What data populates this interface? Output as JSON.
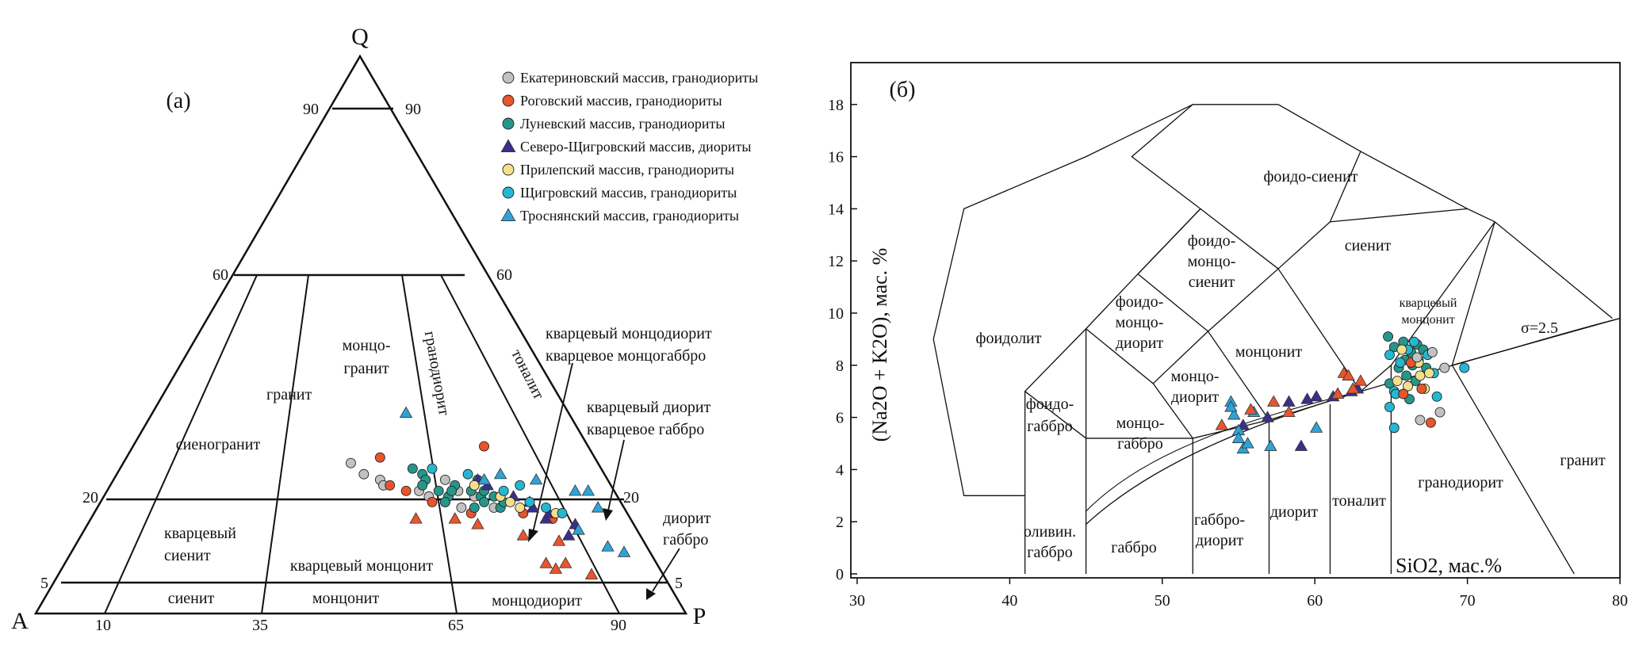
{
  "colors": {
    "ekaterinovsky": "#c2c2c2",
    "rogovsky": "#e8552c",
    "lunevsky": "#27968a",
    "severo_shchigrovsky": "#3a2f8a",
    "prilepsky": "#f4e08c",
    "shchigrovsky": "#25b7d2",
    "trosnyansky": "#2fa3d6",
    "triangles_orange": "#e8552c"
  },
  "panel_a": {
    "label": "(а)",
    "apex_q": "Q",
    "apex_a": "A",
    "apex_p": "P",
    "tick_labels": {
      "left_90": "90",
      "right_90": "90",
      "left_60": "60",
      "right_60": "60",
      "left_20": "20",
      "right_20": "20",
      "left_5": "5",
      "right_5": "5",
      "base_10": "10",
      "base_35": "35",
      "base_65": "65",
      "base_90": "90"
    },
    "fields": {
      "granite": "гранит",
      "monzogranite_1": "монцо-",
      "monzogranite_2": "гранит",
      "granodiorite": "гранодиорит",
      "tonalite": "тоналит",
      "syenogranite": "сиеногранит",
      "quartz_syenite_1": "кварцевый",
      "quartz_syenite_2": "сиенит",
      "quartz_monzonite": "кварцевый монцонит",
      "syenite": "сиенит",
      "monzonite": "монцонит",
      "monzodiorite": "монцодиорит",
      "qmd_1": "кварцевый монцодиорит",
      "qmd_2": "кварцевое монцогаббро",
      "qd_1": "кварцевый диорит",
      "qd_2": "кварцевое габбро",
      "dg_1": "диорит",
      "dg_2": "габбро"
    },
    "legend": [
      {
        "key": "ekaterinovsky",
        "marker": "circle",
        "label": "Екатериновский массив, гранодиориты"
      },
      {
        "key": "rogovsky",
        "marker": "circle",
        "label": "Роговский массив, гранодиориты"
      },
      {
        "key": "lunevsky",
        "marker": "circle",
        "label": "Луневский массив, гранодиориты"
      },
      {
        "key": "severo_shchigrovsky",
        "marker": "triangle",
        "label": "Северо-Щигровский массив, диориты"
      },
      {
        "key": "prilepsky",
        "marker": "circle",
        "label": "Прилепский массив, гранодиориты"
      },
      {
        "key": "shchigrovsky",
        "marker": "circle",
        "label": "Щигровский массив, гранодиориты"
      },
      {
        "key": "trosnyansky",
        "marker": "triangle",
        "label": "Троснянский массив, гранодиориты"
      }
    ]
  },
  "panel_b": {
    "label": "(б)",
    "ylabel": "(Na2O + K2O), мас. %",
    "xlabel": "SiO2, мас.%",
    "sigma_label": "σ=2.5",
    "fields": {
      "foidolite": "фоидолит",
      "foid_gabbro_1": "фоидо-",
      "foid_gabbro_2": "габбро",
      "foid_monzodiorite_1": "фоидо-",
      "foid_monzodiorite_2": "монцо-",
      "foid_monzodiorite_3": "диорит",
      "foid_monzosyenite_1": "фоидо-",
      "foid_monzosyenite_2": "монцо-",
      "foid_monzosyenite_3": "сиенит",
      "foid_syenite": "фоидо-сиенит",
      "syenite": "сиенит",
      "quartz_monzonite_1": "кварцевый",
      "quartz_monzonite_2": "монцонит",
      "monzonite": "монцонит",
      "monzodiorite_1": "монцо-",
      "monzodiorite_2": "диорит",
      "monzogabbro_1": "монцо-",
      "monzogabbro_2": "габбро",
      "olivine_gabbro_1": "оливин.",
      "olivine_gabbro_2": "габбро",
      "gabbro": "габбро",
      "gabbrodiorite_1": "габбро-",
      "gabbrodiorite_2": "диорит",
      "diorite": "диорит",
      "tonalite": "тоналит",
      "granodiorite": "гранодиорит",
      "granite": "гранит"
    }
  },
  "chart_data": [
    {
      "type": "scatter",
      "subtype": "ternary QAP",
      "title": "(а)",
      "axes": [
        "Q",
        "A",
        "P"
      ],
      "series": [
        {
          "name": "Екатериновский массив, гранодиориты",
          "marker": "circle",
          "points": [
            [
              27,
              38,
              35
            ],
            [
              25,
              37,
              38
            ],
            [
              24,
              35,
              41
            ],
            [
              23,
              35,
              42
            ],
            [
              22,
              30,
              48
            ],
            [
              21,
              29,
              50
            ],
            [
              20,
              27,
              53
            ],
            [
              19,
              25,
              56
            ],
            [
              22,
              24,
              54
            ],
            [
              24,
              25,
              51
            ],
            [
              21,
              22,
              57
            ],
            [
              19,
              20,
              61
            ]
          ]
        },
        {
          "name": "Роговский массив, гранодиориты",
          "marker": "circle",
          "points": [
            [
              28,
              33,
              39
            ],
            [
              23,
              34,
              43
            ],
            [
              22,
              32,
              46
            ],
            [
              20,
              29,
              51
            ],
            [
              18,
              24,
              58
            ],
            [
              30,
              16,
              54
            ],
            [
              18,
              16,
              66
            ],
            [
              17,
              12,
              71
            ]
          ]
        },
        {
          "name": "Луневский массив, гранодиориты",
          "marker": "circle",
          "points": [
            [
              26,
              29,
              45
            ],
            [
              25,
              28,
              47
            ],
            [
              24,
              28,
              48
            ],
            [
              23,
              29,
              48
            ],
            [
              22,
              27,
              51
            ],
            [
              21,
              26,
              53
            ],
            [
              20,
              27,
              53
            ],
            [
              23,
              24,
              53
            ],
            [
              22,
              22,
              56
            ],
            [
              21,
              21,
              58
            ],
            [
              20,
              21,
              59
            ],
            [
              22,
              20,
              58
            ],
            [
              21,
              19,
              60
            ],
            [
              19,
              19,
              62
            ],
            [
              20,
              18,
              62
            ],
            [
              24,
              20,
              56
            ],
            [
              22,
              25,
              53
            ],
            [
              19,
              23,
              58
            ]
          ]
        },
        {
          "name": "Северо-Щигровский массив, диориты",
          "marker": "triangle",
          "points": [
            [
              24,
              20,
              56
            ],
            [
              23,
              19,
              58
            ],
            [
              21,
              16,
              63
            ],
            [
              20,
              14,
              66
            ],
            [
              19,
              14,
              67
            ],
            [
              17,
              13,
              70
            ],
            [
              16,
              9,
              75
            ],
            [
              18,
              12,
              70
            ],
            [
              14,
              11,
              75
            ]
          ]
        },
        {
          "name": "Прилепский массив, гранодиориты",
          "marker": "circle",
          "points": [
            [
              23,
              21,
              56
            ],
            [
              21,
              18,
              61
            ],
            [
              18,
              11,
              71
            ],
            [
              20,
              17,
              63
            ],
            [
              19,
              16,
              65
            ]
          ]
        },
        {
          "name": "Щигровский массив, гранодиориты",
          "marker": "circle",
          "points": [
            [
              26,
              26,
              48
            ],
            [
              25,
              21,
              54
            ],
            [
              22,
              17,
              61
            ],
            [
              20,
              14,
              66
            ],
            [
              19,
              12,
              69
            ],
            [
              23,
              14,
              63
            ],
            [
              18,
              10,
              72
            ]
          ]
        },
        {
          "name": "Троснянский массив, гранодиориты",
          "marker": "triangle",
          "points": [
            [
              36,
              25,
              39
            ],
            [
              25,
              16,
              59
            ],
            [
              24,
              11,
              65
            ],
            [
              22,
              6,
              72
            ],
            [
              22,
              4,
              74
            ],
            [
              19,
              4,
              77
            ],
            [
              15,
              9,
              76
            ],
            [
              12,
              6,
              82
            ],
            [
              11,
              4,
              85
            ],
            [
              24,
              19,
              57
            ]
          ]
        },
        {
          "name": "",
          "marker": "triangle",
          "points": [
            [
              17,
              33,
              50
            ],
            [
              17,
              27,
              56
            ],
            [
              16,
              24,
              60
            ],
            [
              14,
              18,
              68
            ],
            [
              9,
              17,
              74
            ],
            [
              8,
              16,
              76
            ],
            [
              9,
              14,
              77
            ],
            [
              7,
              11,
              82
            ],
            [
              13,
              13,
              74
            ]
          ]
        }
      ]
    },
    {
      "type": "scatter",
      "subtype": "TAS",
      "title": "(б)",
      "xlabel": "SiO2, мас.%",
      "ylabel": "(Na2O + K2O), мас. %",
      "xlim": [
        30,
        80
      ],
      "ylim": [
        0,
        19
      ],
      "xticks": [
        30,
        40,
        50,
        60,
        70,
        80
      ],
      "yticks": [
        0,
        2,
        4,
        6,
        8,
        10,
        12,
        14,
        16,
        18
      ],
      "series": [
        {
          "name": "Луневский массив, гранодиориты",
          "marker": "circle",
          "points": [
            [
              64.8,
              9.1
            ],
            [
              65.2,
              8.7
            ],
            [
              65.8,
              8.9
            ],
            [
              66.3,
              8.5
            ],
            [
              66.7,
              8.8
            ],
            [
              67.1,
              8.6
            ],
            [
              65.5,
              7.9
            ],
            [
              66.0,
              7.6
            ],
            [
              66.6,
              7.4
            ],
            [
              67.3,
              7.9
            ],
            [
              65.9,
              8.2
            ],
            [
              66.4,
              8.0
            ],
            [
              64.9,
              7.3
            ],
            [
              66.2,
              6.7
            ]
          ]
        },
        {
          "name": "Щигровский массив, гранодиориты",
          "marker": "circle",
          "points": [
            [
              64.9,
              8.4
            ],
            [
              65.6,
              8.1
            ],
            [
              66.1,
              8.6
            ],
            [
              66.8,
              8.2
            ],
            [
              67.4,
              8.4
            ],
            [
              65.2,
              7.0
            ],
            [
              64.9,
              6.4
            ],
            [
              65.3,
              6.9
            ],
            [
              68.0,
              6.8
            ],
            [
              69.8,
              7.9
            ],
            [
              65.2,
              5.6
            ],
            [
              67.8,
              7.7
            ],
            [
              66.5,
              8.9
            ]
          ]
        },
        {
          "name": "Прилепский массив, гранодиориты",
          "marker": "circle",
          "points": [
            [
              65.4,
              7.4
            ],
            [
              66.1,
              7.2
            ],
            [
              66.9,
              7.6
            ],
            [
              67.5,
              7.7
            ],
            [
              65.7,
              8.6
            ],
            [
              66.8,
              8.1
            ],
            [
              67.2,
              7.1
            ]
          ]
        },
        {
          "name": "Роговский массив, гранодиориты",
          "marker": "circle",
          "points": [
            [
              65.8,
              6.9
            ],
            [
              66.3,
              8.1
            ],
            [
              67.0,
              7.1
            ],
            [
              67.6,
              5.8
            ]
          ]
        },
        {
          "name": "Екатериновский массив, гранодиориты",
          "marker": "circle",
          "points": [
            [
              68.2,
              6.2
            ],
            [
              68.5,
              7.9
            ],
            [
              66.9,
              5.9
            ],
            [
              66.7,
              8.3
            ],
            [
              67.7,
              8.5
            ]
          ]
        },
        {
          "name": "Северо-Щигровский массив, диориты",
          "marker": "triangle",
          "points": [
            [
              56.9,
              6.0
            ],
            [
              58.3,
              6.6
            ],
            [
              59.5,
              6.7
            ],
            [
              60.1,
              6.8
            ],
            [
              61.2,
              6.8
            ],
            [
              61.5,
              6.9
            ],
            [
              62.4,
              7.0
            ],
            [
              62.8,
              7.1
            ],
            [
              59.1,
              4.9
            ],
            [
              55.3,
              5.7
            ]
          ]
        },
        {
          "name": "Троснянский массив, гранодиориты",
          "marker": "triangle",
          "points": [
            [
              54.5,
              6.6
            ],
            [
              54.7,
              6.1
            ],
            [
              55.0,
              5.5
            ],
            [
              55.3,
              4.8
            ],
            [
              55.6,
              5.0
            ],
            [
              56.0,
              6.2
            ],
            [
              57.1,
              4.9
            ],
            [
              60.1,
              5.6
            ],
            [
              54.5,
              6.4
            ],
            [
              55.0,
              5.2
            ]
          ]
        },
        {
          "name": "",
          "marker": "triangle",
          "points": [
            [
              53.9,
              5.7
            ],
            [
              55.8,
              6.3
            ],
            [
              57.3,
              6.6
            ],
            [
              58.3,
              6.2
            ],
            [
              61.9,
              7.7
            ],
            [
              62.2,
              7.6
            ],
            [
              62.5,
              7.1
            ],
            [
              63.0,
              7.4
            ],
            [
              61.5,
              6.9
            ]
          ]
        }
      ]
    }
  ]
}
